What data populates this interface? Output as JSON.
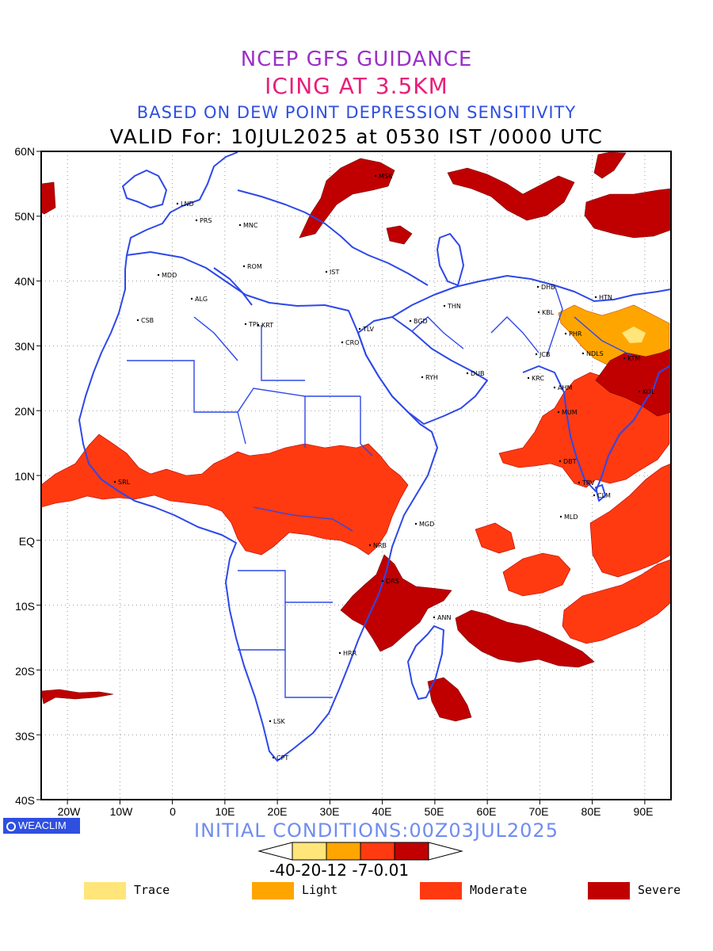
{
  "titles": {
    "line1": "NCEP GFS GUIDANCE",
    "line2": "ICING AT 3.5KM",
    "line3": "BASED ON DEW POINT DEPRESSION SENSITIVITY",
    "line4": "VALID For: 10JUL2025 at 0530 IST /0000 UTC",
    "initial": "INITIAL CONDITIONS:00Z03JUL2025"
  },
  "axes": {
    "lat_labels": [
      "60N",
      "50N",
      "40N",
      "30N",
      "20N",
      "10N",
      "EQ",
      "10S",
      "20S",
      "30S",
      "40S"
    ],
    "lon_labels": [
      "20W",
      "10W",
      "0",
      "10E",
      "20E",
      "30E",
      "40E",
      "50E",
      "60E",
      "70E",
      "80E",
      "90E"
    ],
    "lat_range": [
      -40,
      60
    ],
    "lon_range": [
      -25,
      95
    ],
    "grid": true
  },
  "logo": {
    "text": "WEACLIM"
  },
  "colorbar": {
    "labels": "-40-20-12 -7-0.01",
    "colors": [
      "#ffe57a",
      "#ffa500",
      "#ff3a10",
      "#c00000"
    ]
  },
  "legend": [
    {
      "label": "Trace",
      "color": "#ffe57a"
    },
    {
      "label": "Light",
      "color": "#ffa500"
    },
    {
      "label": "Moderate",
      "color": "#ff3a10"
    },
    {
      "label": "Severe",
      "color": "#c00000"
    }
  ],
  "stations": [
    {
      "code": "MSK"
    },
    {
      "code": "LND"
    },
    {
      "code": "PRS"
    },
    {
      "code": "MNC"
    },
    {
      "code": "ROM"
    },
    {
      "code": "MDD"
    },
    {
      "code": "IST"
    },
    {
      "code": "ALG"
    },
    {
      "code": "CSB"
    },
    {
      "code": "TPL"
    },
    {
      "code": "KRT"
    },
    {
      "code": "TLV"
    },
    {
      "code": "CRO"
    },
    {
      "code": "BGD"
    },
    {
      "code": "THN"
    },
    {
      "code": "DHB"
    },
    {
      "code": "HTN"
    },
    {
      "code": "KBL"
    },
    {
      "code": "JCB"
    },
    {
      "code": "PHR"
    },
    {
      "code": "NDLS"
    },
    {
      "code": "KTM"
    },
    {
      "code": "RYH"
    },
    {
      "code": "DUB"
    },
    {
      "code": "KRC"
    },
    {
      "code": "AHM"
    },
    {
      "code": "KOL"
    },
    {
      "code": "MUM"
    },
    {
      "code": "DBT"
    },
    {
      "code": "SRL"
    },
    {
      "code": "TRV"
    },
    {
      "code": "CLM"
    },
    {
      "code": "MLD"
    },
    {
      "code": "MGD"
    },
    {
      "code": "NRB"
    },
    {
      "code": "DRS"
    },
    {
      "code": "ANN"
    },
    {
      "code": "HRR"
    },
    {
      "code": "LSK"
    },
    {
      "code": "CPT"
    }
  ]
}
